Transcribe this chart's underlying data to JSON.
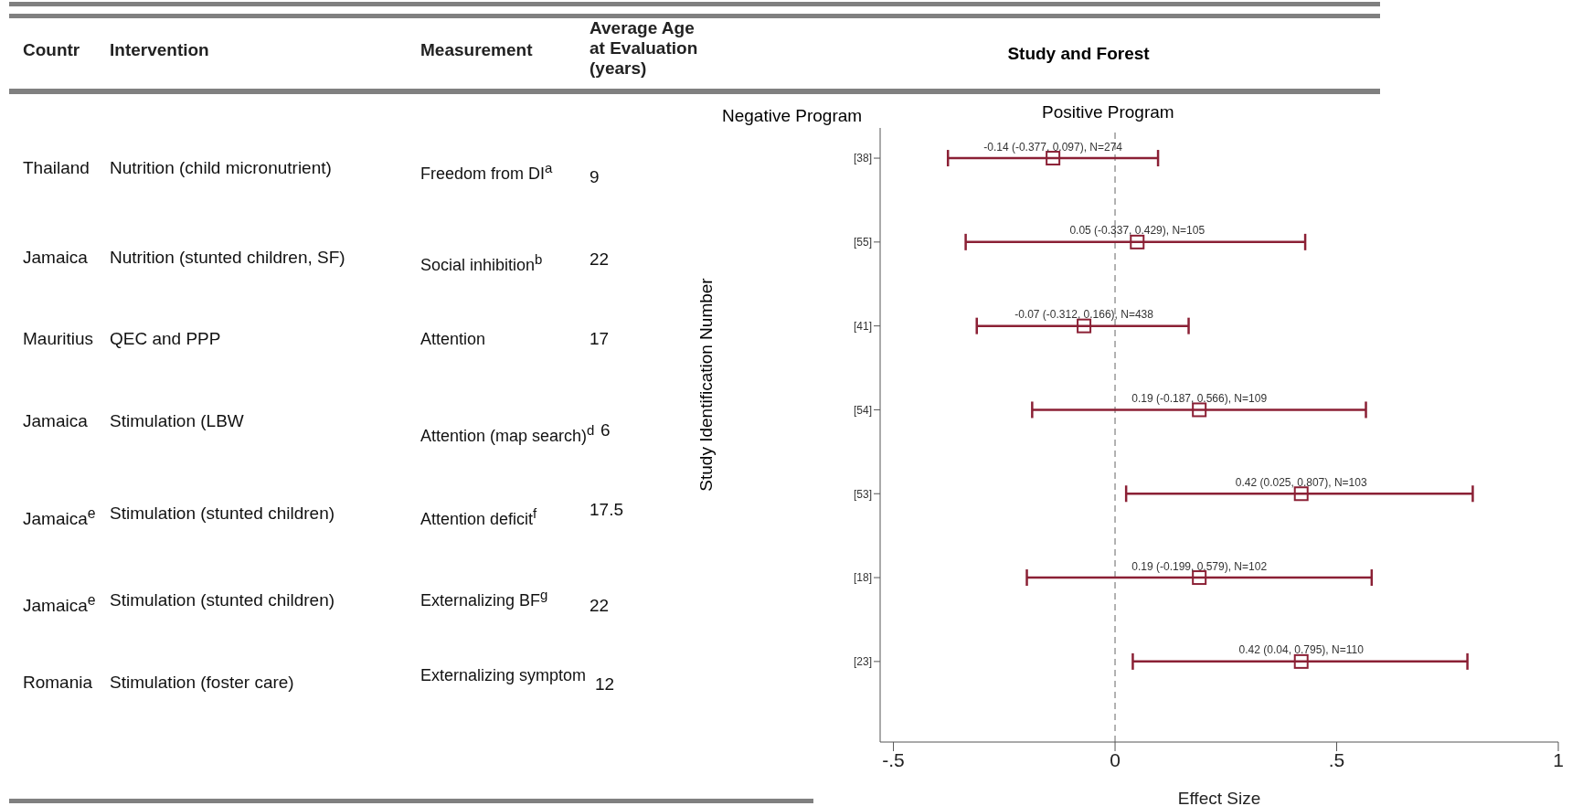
{
  "chart_data": [
    {
      "type": "other",
      "categories": [
        "Countr",
        "Intervention",
        "Measurement",
        "Average Age at Evaluation (years)"
      ],
      "annotations": [
        "Thailand",
        "Nutrition (child micronutrient)",
        "Freedom from DI$^{a}$",
        "9",
        "Jamaica",
        "Nutrition (stunted children, SF)",
        "Social inhibition$^{b}$",
        "22",
        "Mauritius",
        "QEC and PPP",
        "Attention",
        "17",
        "Jamaica",
        "Stimulation (LBW",
        "Attention (map search)$^{d}$",
        "6",
        "Jamaica$^{e}$",
        "Stimulation (stunted children)",
        "Attention deficit$^{f}$",
        "17.5",
        "Jamaica$^{e}$",
        "Stimulation (stunted children)",
        "Externalizing BF$^{g}$",
        "22",
        "Romania",
        "Stimulation (foster care)",
        "Externalizing symptom",
        "12"
      ]
    },
    {
      "type": "scatter",
      "orientation": "horizontal",
      "title": "Study and Forest",
      "xlabel": "Effect Size",
      "ylabel": "Study Identification Number",
      "annotations": [
        "Negative Program",
        "Positive Program"
      ],
      "categories": [
        "[38]",
        "[55]",
        "[41]",
        "[54]",
        "[53]",
        "[18]",
        "[23]"
      ],
      "series": [
        {
          "color": "#8b2035",
          "values": [
            -0.14,
            0.05,
            -0.07,
            0.19,
            0.42,
            0.19,
            0.42
          ],
          "errors": [
            [
              -0.377,
              0.097
            ],
            [
              -0.337,
              0.429
            ],
            [
              -0.312,
              0.166
            ],
            [
              -0.187,
              0.566
            ],
            [
              0.025,
              0.807
            ],
            [
              -0.199,
              0.579
            ],
            [
              0.04,
              0.795
            ]
          ],
          "value_labels": [
            "-0.14 (-0.377, 0.097), N=274",
            "0.05 (-0.337, 0.429), N=105",
            "-0.07 (-0.312, 0.166), N=438",
            "0.19 (-0.187, 0.566), N=109",
            "0.42 (0.025, 0.807), N=103",
            "0.19 (-0.199, 0.579), N=102",
            "0.42 (0.04, 0.795), N=110"
          ]
        }
      ],
      "xlim": [
        -0.53,
        1
      ],
      "xticks": [
        {
          "value": -0.5,
          "label": "-.5"
        },
        0,
        {
          "value": 0.5,
          "label": ".5"
        },
        1
      ],
      "ref_lines": [
        {
          "axis": "x",
          "value": 0,
          "color": "#999999",
          "line_style": "dashed"
        }
      ],
      "marker": "square",
      "legend": false,
      "grid": false
    }
  ]
}
